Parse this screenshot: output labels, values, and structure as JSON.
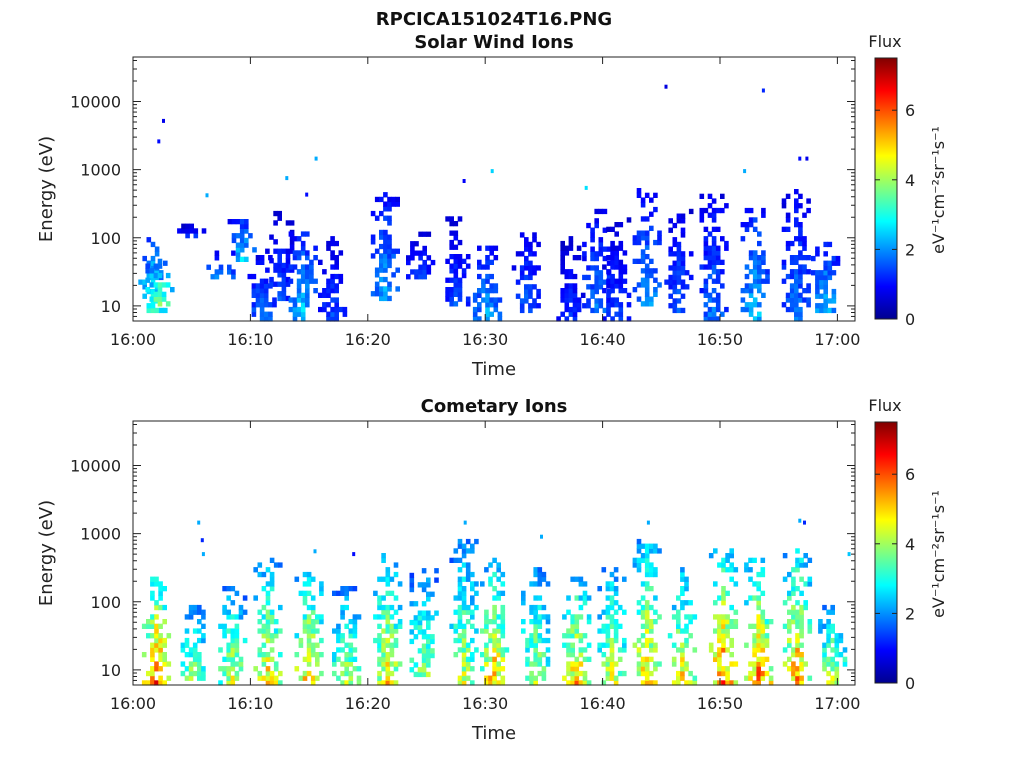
{
  "title": "RPCICA151024T16.PNG",
  "chart_data": [
    {
      "type": "heatmap",
      "title": "Solar Wind Ions",
      "xlabel": "Time",
      "ylabel": "Energy (eV)",
      "x_ticks": [
        "16:00",
        "16:10",
        "16:20",
        "16:30",
        "16:40",
        "16:50",
        "17:00"
      ],
      "x_range_minutes": [
        0,
        61.5
      ],
      "y_scale": "log",
      "y_ticks": [
        "10",
        "100",
        "1000",
        "10000"
      ],
      "y_range": [
        6,
        45000
      ],
      "colorbar": {
        "title": "Flux",
        "units": "eV⁻¹cm⁻²sr⁻¹s⁻¹",
        "ticks": [
          "0",
          "2",
          "4",
          "6"
        ],
        "range": [
          0,
          7.5
        ],
        "colormap": "jet"
      },
      "bursts": [
        {
          "t": 1.7,
          "e_min": 8,
          "e_max": 90,
          "level": 3.4
        },
        {
          "t": 2.3,
          "e_min": 10,
          "e_max": 50,
          "level": 4.0
        },
        {
          "t": 5.0,
          "e_min": 100,
          "e_max": 140,
          "level": 1.5
        },
        {
          "t": 7.5,
          "e_min": 25,
          "e_max": 60,
          "level": 2.2
        },
        {
          "t": 9.3,
          "e_min": 45,
          "e_max": 180,
          "level": 2.8
        },
        {
          "t": 11.0,
          "e_min": 6,
          "e_max": 50,
          "level": 2.0
        },
        {
          "t": 12.5,
          "e_min": 12,
          "e_max": 220,
          "level": 1.6
        },
        {
          "t": 14.5,
          "e_min": 6,
          "e_max": 120,
          "level": 2.7
        },
        {
          "t": 17.0,
          "e_min": 6,
          "e_max": 100,
          "level": 1.6
        },
        {
          "t": 21.5,
          "e_min": 12,
          "e_max": 400,
          "level": 2.4
        },
        {
          "t": 24.5,
          "e_min": 25,
          "e_max": 120,
          "level": 1.5
        },
        {
          "t": 27.5,
          "e_min": 10,
          "e_max": 180,
          "level": 1.6
        },
        {
          "t": 30.2,
          "e_min": 6,
          "e_max": 70,
          "level": 2.4
        },
        {
          "t": 33.5,
          "e_min": 8,
          "e_max": 120,
          "level": 1.8
        },
        {
          "t": 37.3,
          "e_min": 6,
          "e_max": 100,
          "level": 1.4
        },
        {
          "t": 39.5,
          "e_min": 8,
          "e_max": 250,
          "level": 2.0
        },
        {
          "t": 41.2,
          "e_min": 6,
          "e_max": 180,
          "level": 1.5
        },
        {
          "t": 43.8,
          "e_min": 10,
          "e_max": 500,
          "level": 2.3
        },
        {
          "t": 46.5,
          "e_min": 8,
          "e_max": 250,
          "level": 1.8
        },
        {
          "t": 49.5,
          "e_min": 6,
          "e_max": 400,
          "level": 2.0
        },
        {
          "t": 53.0,
          "e_min": 6,
          "e_max": 300,
          "level": 2.6
        },
        {
          "t": 56.5,
          "e_min": 6,
          "e_max": 500,
          "level": 2.0
        },
        {
          "t": 59.0,
          "e_min": 8,
          "e_max": 80,
          "level": 2.6
        }
      ],
      "dots": [
        {
          "t": 2.2,
          "e": 2600,
          "level": 1.0
        },
        {
          "t": 2.6,
          "e": 5200,
          "level": 0.8
        },
        {
          "t": 6.3,
          "e": 420,
          "level": 2.2
        },
        {
          "t": 13.1,
          "e": 750,
          "level": 2.2
        },
        {
          "t": 14.8,
          "e": 430,
          "level": 1.0
        },
        {
          "t": 15.6,
          "e": 1450,
          "level": 2.2
        },
        {
          "t": 28.2,
          "e": 680,
          "level": 0.9
        },
        {
          "t": 30.6,
          "e": 950,
          "level": 2.5
        },
        {
          "t": 38.6,
          "e": 540,
          "level": 2.6
        },
        {
          "t": 45.4,
          "e": 16500,
          "level": 0.7
        },
        {
          "t": 53.7,
          "e": 14500,
          "level": 1.2
        },
        {
          "t": 52.1,
          "e": 950,
          "level": 2.2
        },
        {
          "t": 56.8,
          "e": 1450,
          "level": 1.0
        },
        {
          "t": 57.4,
          "e": 1450,
          "level": 0.8
        }
      ]
    },
    {
      "type": "heatmap",
      "title": "Cometary Ions",
      "xlabel": "Time",
      "ylabel": "Energy (eV)",
      "x_ticks": [
        "16:00",
        "16:10",
        "16:20",
        "16:30",
        "16:40",
        "16:50",
        "17:00"
      ],
      "x_range_minutes": [
        0,
        61.5
      ],
      "y_scale": "log",
      "y_ticks": [
        "10",
        "100",
        "1000",
        "10000"
      ],
      "y_range": [
        6,
        45000
      ],
      "colorbar": {
        "title": "Flux",
        "units": "eV⁻¹cm⁻²sr⁻¹s⁻¹",
        "ticks": [
          "0",
          "2",
          "4",
          "6"
        ],
        "range": [
          0,
          7.5
        ],
        "colormap": "jet"
      },
      "bursts": [
        {
          "t": 2.0,
          "e_min": 6,
          "e_max": 200,
          "level": 6.6
        },
        {
          "t": 5.3,
          "e_min": 6,
          "e_max": 80,
          "level": 4.6
        },
        {
          "t": 8.5,
          "e_min": 6,
          "e_max": 150,
          "level": 4.8
        },
        {
          "t": 11.5,
          "e_min": 6,
          "e_max": 400,
          "level": 5.3
        },
        {
          "t": 15.0,
          "e_min": 6,
          "e_max": 250,
          "level": 5.6
        },
        {
          "t": 18.2,
          "e_min": 6,
          "e_max": 150,
          "level": 4.6
        },
        {
          "t": 21.7,
          "e_min": 6,
          "e_max": 500,
          "level": 5.2
        },
        {
          "t": 24.8,
          "e_min": 8,
          "e_max": 300,
          "level": 4.4
        },
        {
          "t": 28.2,
          "e_min": 6,
          "e_max": 800,
          "level": 4.6
        },
        {
          "t": 30.8,
          "e_min": 6,
          "e_max": 400,
          "level": 5.6
        },
        {
          "t": 34.3,
          "e_min": 6,
          "e_max": 300,
          "level": 4.6
        },
        {
          "t": 37.8,
          "e_min": 6,
          "e_max": 250,
          "level": 5.6
        },
        {
          "t": 40.8,
          "e_min": 6,
          "e_max": 300,
          "level": 5.0
        },
        {
          "t": 43.8,
          "e_min": 6,
          "e_max": 800,
          "level": 5.6
        },
        {
          "t": 46.8,
          "e_min": 6,
          "e_max": 300,
          "level": 5.2
        },
        {
          "t": 50.3,
          "e_min": 6,
          "e_max": 600,
          "level": 6.2
        },
        {
          "t": 53.3,
          "e_min": 6,
          "e_max": 400,
          "level": 6.1
        },
        {
          "t": 56.6,
          "e_min": 6,
          "e_max": 600,
          "level": 5.9
        },
        {
          "t": 59.6,
          "e_min": 6,
          "e_max": 80,
          "level": 4.8
        }
      ],
      "dots": [
        {
          "t": 5.6,
          "e": 1450,
          "level": 2.2
        },
        {
          "t": 5.9,
          "e": 800,
          "level": 1.2
        },
        {
          "t": 6.0,
          "e": 500,
          "level": 2.2
        },
        {
          "t": 15.5,
          "e": 550,
          "level": 2.2
        },
        {
          "t": 18.8,
          "e": 500,
          "level": 1.0
        },
        {
          "t": 28.3,
          "e": 1450,
          "level": 2.2
        },
        {
          "t": 34.8,
          "e": 900,
          "level": 2.2
        },
        {
          "t": 43.9,
          "e": 1450,
          "level": 2.2
        },
        {
          "t": 56.8,
          "e": 1550,
          "level": 2.2
        },
        {
          "t": 57.2,
          "e": 1450,
          "level": 1.2
        },
        {
          "t": 61.0,
          "e": 500,
          "level": 2.4
        }
      ]
    }
  ]
}
